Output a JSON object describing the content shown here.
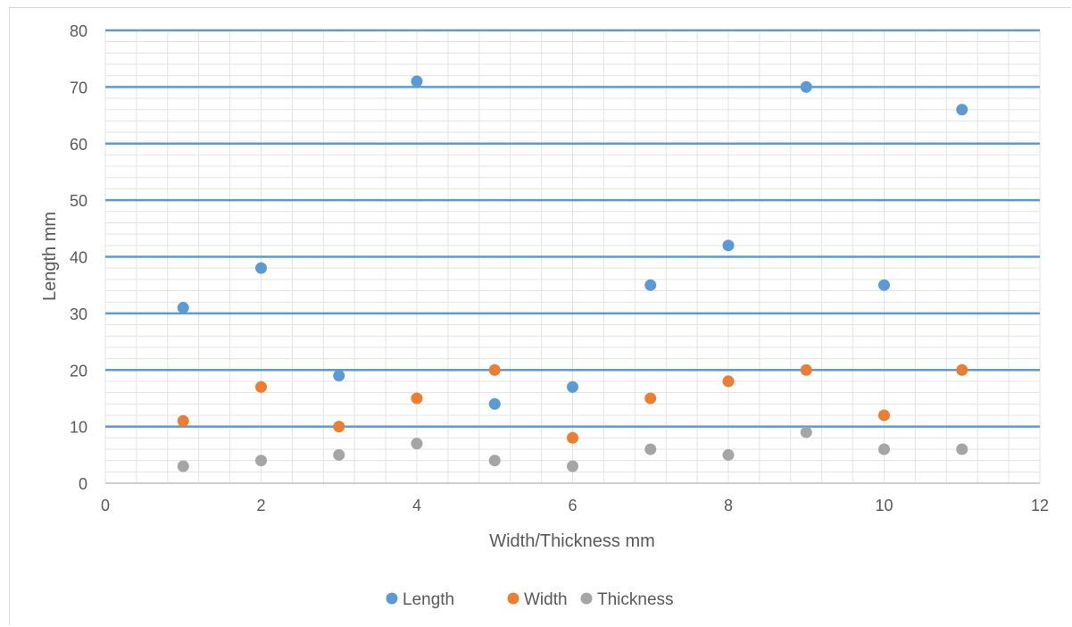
{
  "chart_data": {
    "type": "scatter",
    "title": "",
    "xlabel": "Width/Thickness mm",
    "ylabel": "Length mm",
    "xlim": [
      0,
      12
    ],
    "ylim": [
      0,
      80
    ],
    "x_ticks": [
      0,
      2,
      4,
      6,
      8,
      10,
      12
    ],
    "y_ticks": [
      0,
      10,
      20,
      30,
      40,
      50,
      60,
      70,
      80
    ],
    "grid": "major and minor",
    "legend_position": "bottom",
    "series": [
      {
        "name": "Length",
        "color": "#5b9bd5",
        "x": [
          1,
          2,
          3,
          4,
          5,
          6,
          7,
          8,
          9,
          10,
          11
        ],
        "y": [
          31,
          38,
          19,
          71,
          14,
          17,
          35,
          42,
          70,
          35,
          66
        ]
      },
      {
        "name": "Width",
        "color": "#ed7d31",
        "x": [
          1,
          2,
          3,
          4,
          5,
          6,
          7,
          8,
          9,
          10,
          11
        ],
        "y": [
          11,
          17,
          10,
          15,
          20,
          8,
          15,
          18,
          20,
          12,
          20
        ]
      },
      {
        "name": "Thickness",
        "color": "#a5a5a5",
        "x": [
          1,
          2,
          3,
          4,
          5,
          6,
          7,
          8,
          9,
          10,
          11
        ],
        "y": [
          3,
          4,
          5,
          7,
          4,
          3,
          6,
          5,
          9,
          6,
          6
        ]
      }
    ]
  },
  "colors": {
    "major_grid": "#5b9bd5",
    "minor_grid": "#e3e3e3",
    "axis_text": "#595959"
  }
}
